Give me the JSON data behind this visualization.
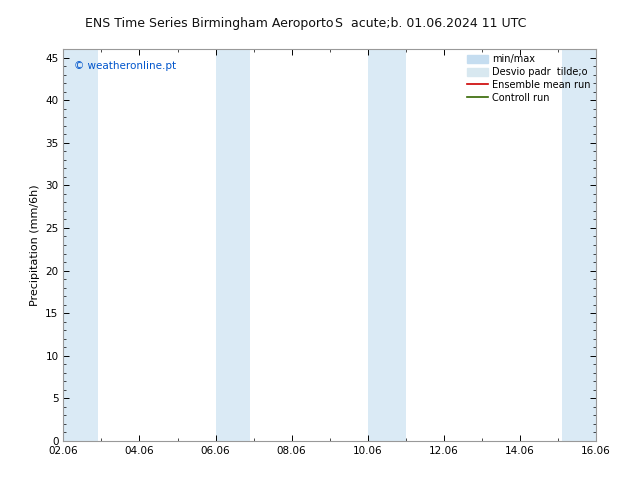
{
  "title_left": "ENS Time Series Birmingham Aeroporto",
  "title_right": "S  acute;b. 01.06.2024 11 UTC",
  "ylabel": "Precipitation (mm/6h)",
  "watermark": "© weatheronline.pt",
  "xlim_dates": [
    "02.06",
    "04.06",
    "06.06",
    "08.06",
    "10.06",
    "12.06",
    "14.06",
    "16.06"
  ],
  "xlim": [
    0,
    14
  ],
  "ylim": [
    0,
    46
  ],
  "yticks": [
    0,
    5,
    10,
    15,
    20,
    25,
    30,
    35,
    40,
    45
  ],
  "background_color": "#ffffff",
  "band_color": "#daeaf5",
  "band_positions": [
    [
      0.0,
      0.9
    ],
    [
      4.0,
      4.9
    ],
    [
      8.0,
      9.0
    ],
    [
      13.1,
      14.0
    ]
  ],
  "legend_entries": [
    {
      "label": "min/max",
      "color": "#c5ddf0",
      "type": "patch"
    },
    {
      "label": "Desvio padr  tilde;o",
      "color": "#d8e8f0",
      "type": "patch"
    },
    {
      "label": "Ensemble mean run",
      "color": "#cc0000",
      "type": "line"
    },
    {
      "label": "Controll run",
      "color": "#336600",
      "type": "line"
    }
  ],
  "title_fontsize": 9,
  "axis_fontsize": 8,
  "tick_fontsize": 7.5,
  "watermark_color": "#0055cc",
  "border_color": "#999999",
  "spine_linewidth": 0.8
}
